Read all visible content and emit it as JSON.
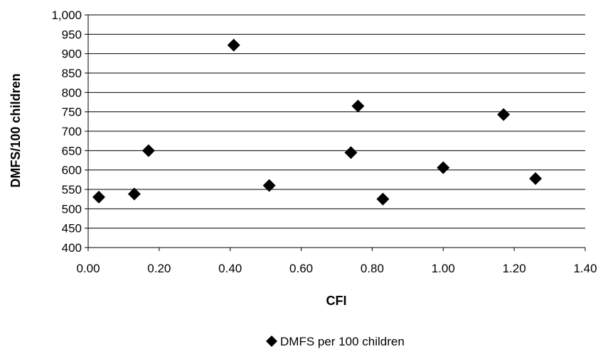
{
  "chart_data": {
    "type": "scatter",
    "title": "",
    "xlabel": "CFI",
    "ylabel": "DMFS/100 children",
    "xlim": [
      0,
      1.4
    ],
    "ylim": [
      400,
      1000
    ],
    "x_ticks": [
      "0.00",
      "0.20",
      "0.40",
      "0.60",
      "0.80",
      "1.00",
      "1.20",
      "1.40"
    ],
    "y_ticks": [
      "400",
      "450",
      "500",
      "550",
      "600",
      "650",
      "700",
      "750",
      "800",
      "850",
      "900",
      "950",
      "1,000"
    ],
    "grid": "horizontal",
    "legend_position": "bottom",
    "marker": "diamond",
    "series": [
      {
        "name": "DMFS per 100 children",
        "color": "#000000",
        "points": [
          {
            "x": 0.03,
            "y": 530
          },
          {
            "x": 0.13,
            "y": 538
          },
          {
            "x": 0.17,
            "y": 650
          },
          {
            "x": 0.41,
            "y": 922
          },
          {
            "x": 0.51,
            "y": 560
          },
          {
            "x": 0.74,
            "y": 645
          },
          {
            "x": 0.76,
            "y": 765
          },
          {
            "x": 0.83,
            "y": 525
          },
          {
            "x": 1.0,
            "y": 606
          },
          {
            "x": 1.17,
            "y": 743
          },
          {
            "x": 1.26,
            "y": 578
          }
        ]
      }
    ]
  }
}
